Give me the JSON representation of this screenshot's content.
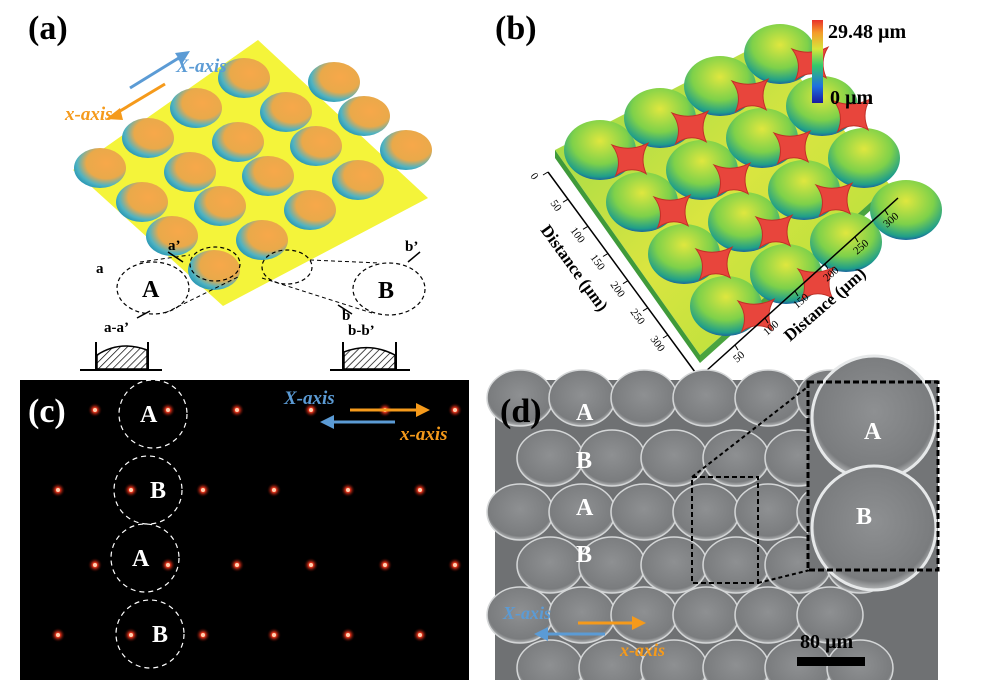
{
  "panels": {
    "a": {
      "label": "(a)",
      "x_axis_upper": "X-axis",
      "x_axis_lower": "x-axis",
      "region_A": "A",
      "region_B": "B",
      "cut_a": "a",
      "cut_a_prime": "a’",
      "cut_b": "b",
      "cut_b_prime": "b’",
      "section_a": "a-a’",
      "section_b": "b-b’",
      "colors": {
        "plane": "#f4f43a",
        "lens_warm": "#f5a544",
        "lens_cool": "#2a9fb5",
        "x_axis_upper": "#5b9bd5",
        "x_axis_lower": "#f59a1b"
      }
    },
    "b": {
      "label": "(b)",
      "colorbar_max": "29.48 µm",
      "colorbar_min": "0 µm",
      "axis_left_title": "Distance (µm)",
      "axis_right_title": "Distance (µm)",
      "ticks_left": [
        "0",
        "50",
        "100",
        "150",
        "200",
        "250",
        "300"
      ],
      "ticks_right": [
        "0",
        "50",
        "100",
        "150",
        "200",
        "250",
        "300"
      ],
      "colors": {
        "high": "#e8453c",
        "mid": "#c9e535",
        "low": "#1c2fa8"
      }
    },
    "c": {
      "label": "(c)",
      "x_axis_upper": "X-axis",
      "x_axis_lower": "x-axis",
      "regions": [
        "A",
        "B",
        "A",
        "B"
      ],
      "colors": {
        "background": "#000000",
        "spot": "#ff3b1f"
      }
    },
    "d": {
      "label": "(d)",
      "regions": [
        "A",
        "B",
        "A",
        "B"
      ],
      "inset_regions": [
        "A",
        "B"
      ],
      "x_axis_upper": "X-axis",
      "x_axis_lower": "x-axis",
      "scale_bar": "80 µm"
    }
  }
}
